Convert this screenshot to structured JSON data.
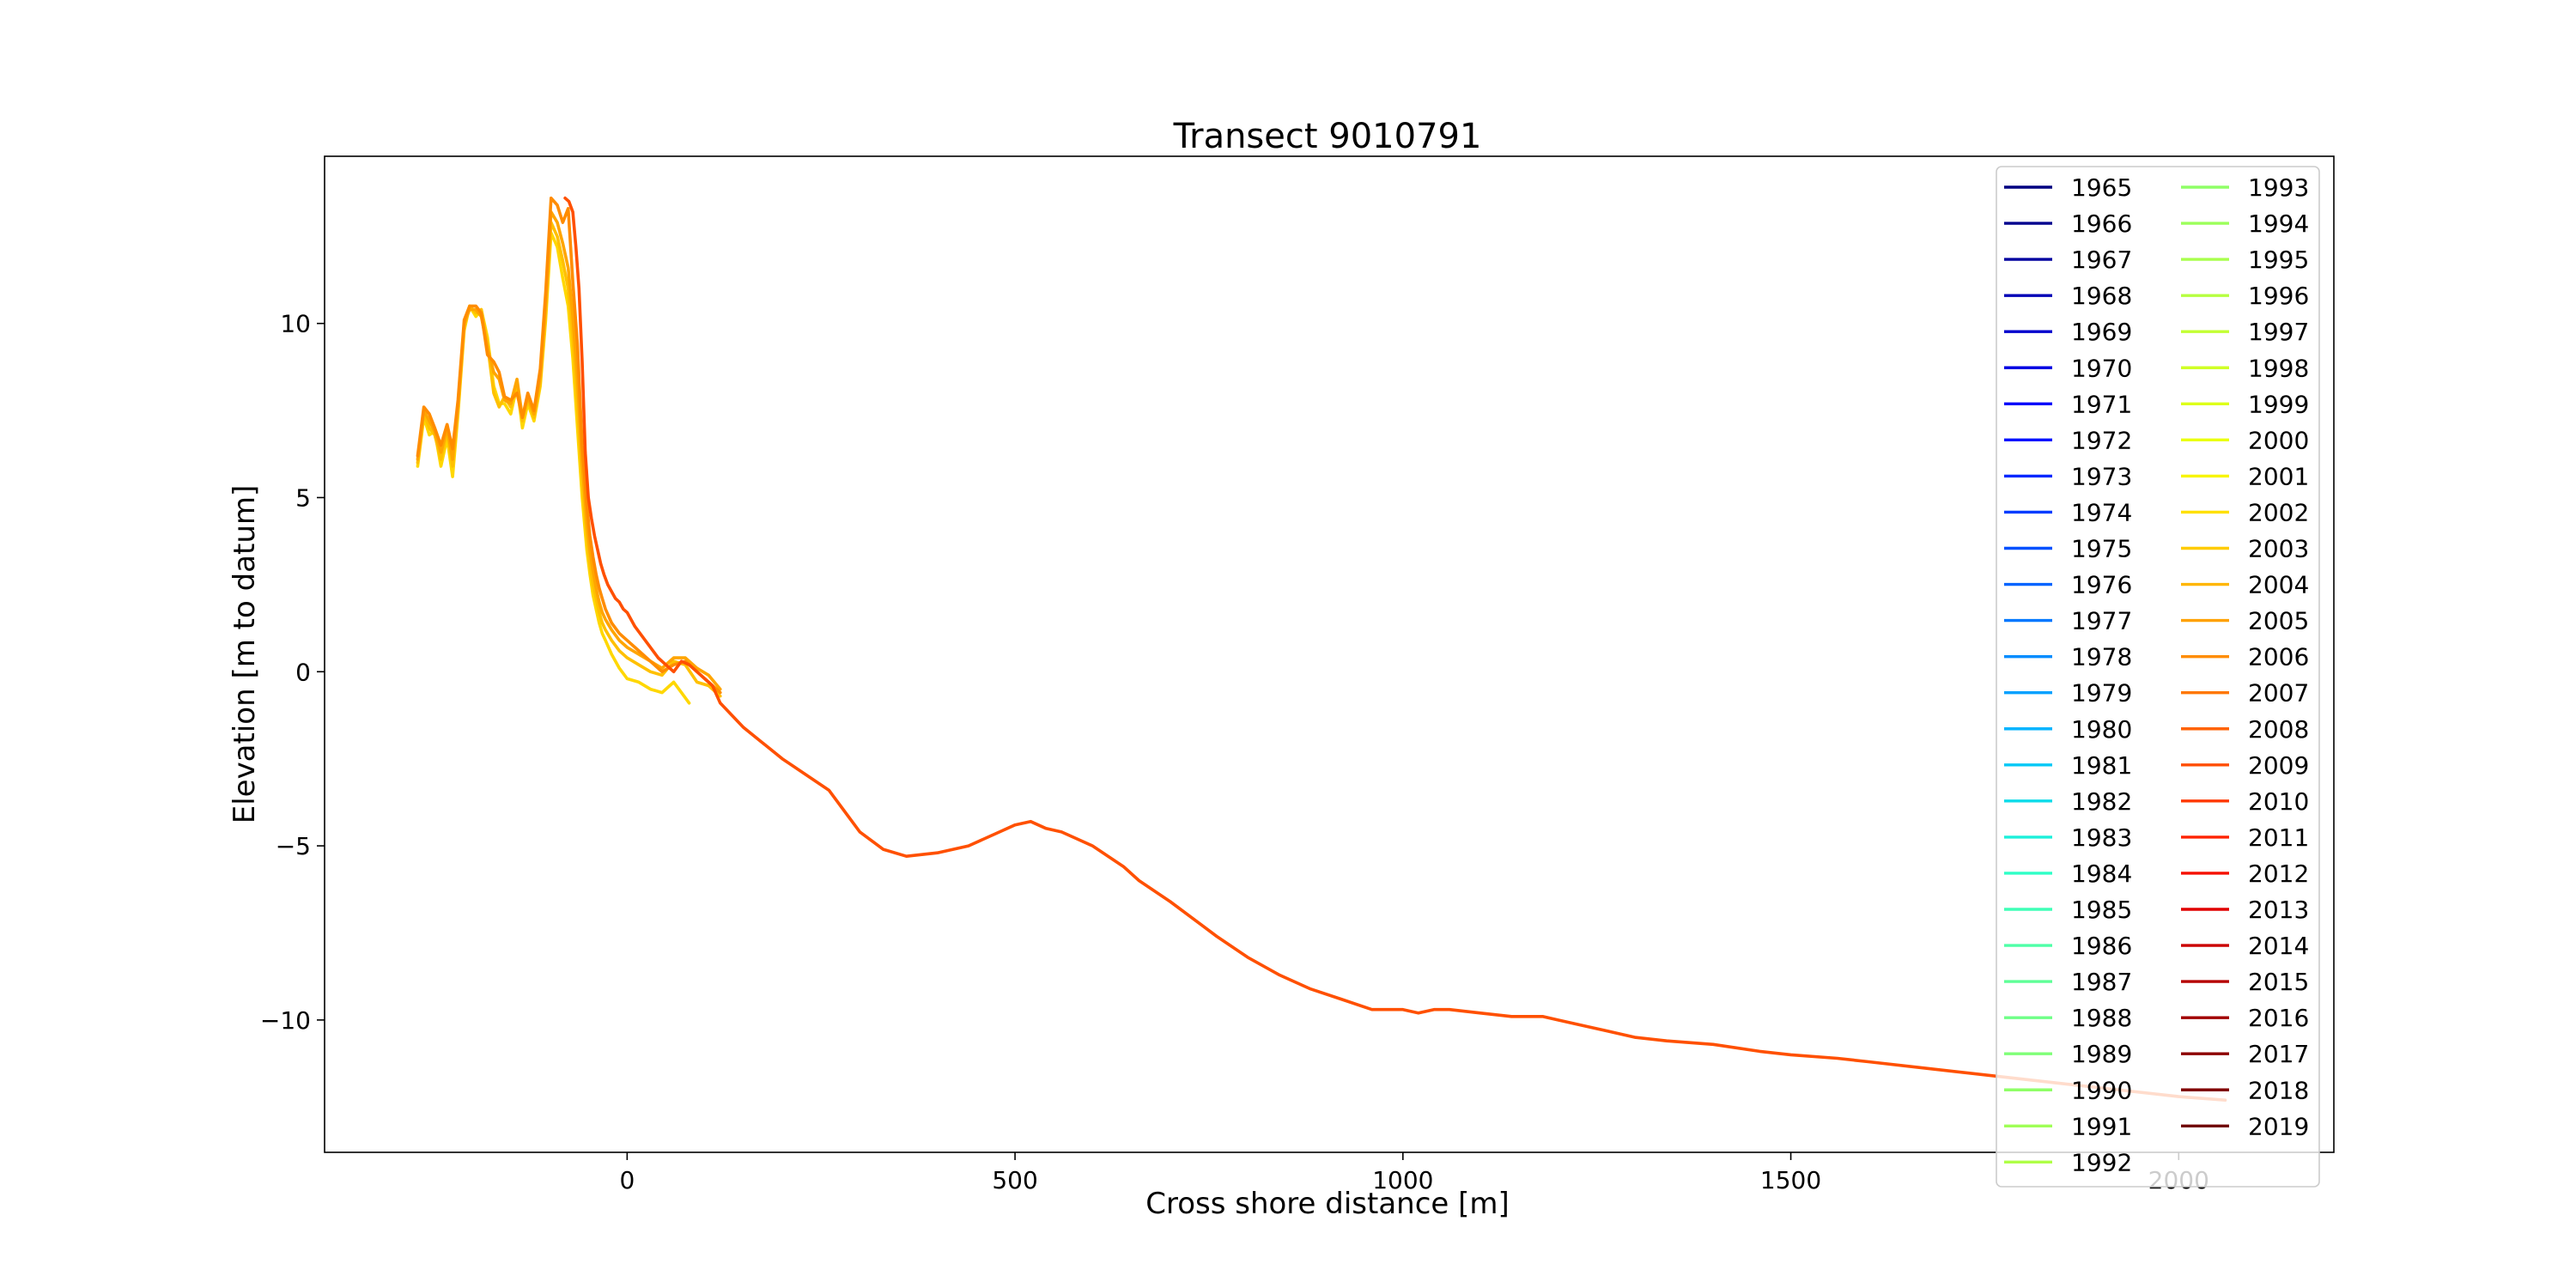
{
  "chart_data": {
    "type": "line",
    "title": "Transect 9010791",
    "xlabel": "Cross shore distance [m]",
    "ylabel": "Elevation [m to datum]",
    "xlim": [
      -390,
      2200
    ],
    "ylim": [
      -13.8,
      14.8
    ],
    "xticks": [
      0,
      500,
      1000,
      1500,
      2000
    ],
    "xtick_labels": [
      "0",
      "500",
      "1000",
      "1500",
      "2000"
    ],
    "yticks": [
      -10,
      -5,
      0,
      5,
      10
    ],
    "ytick_labels": [
      "−10",
      "−5",
      "0",
      "5",
      "10"
    ],
    "grid": false,
    "legend_position": "top-right",
    "legend_columns": 2,
    "legend_entries": [
      {
        "label": "1965",
        "color": "#000080"
      },
      {
        "label": "1966",
        "color": "#00008d"
      },
      {
        "label": "1967",
        "color": "#00009f"
      },
      {
        "label": "1968",
        "color": "#0000b6"
      },
      {
        "label": "1969",
        "color": "#0000cd"
      },
      {
        "label": "1970",
        "color": "#0000e3"
      },
      {
        "label": "1971",
        "color": "#0000fa"
      },
      {
        "label": "1972",
        "color": "#0010ff"
      },
      {
        "label": "1973",
        "color": "#0028ff"
      },
      {
        "label": "1974",
        "color": "#003cff"
      },
      {
        "label": "1975",
        "color": "#0050ff"
      },
      {
        "label": "1976",
        "color": "#0064ff"
      },
      {
        "label": "1977",
        "color": "#0078ff"
      },
      {
        "label": "1978",
        "color": "#008cff"
      },
      {
        "label": "1979",
        "color": "#00a0ff"
      },
      {
        "label": "1980",
        "color": "#00b4ff"
      },
      {
        "label": "1981",
        "color": "#00c8f6"
      },
      {
        "label": "1982",
        "color": "#0ddcea"
      },
      {
        "label": "1983",
        "color": "#1cf0db"
      },
      {
        "label": "1984",
        "color": "#2fffc7"
      },
      {
        "label": "1985",
        "color": "#3fffb7"
      },
      {
        "label": "1986",
        "color": "#4fffa7"
      },
      {
        "label": "1987",
        "color": "#5fff97"
      },
      {
        "label": "1988",
        "color": "#6fff87"
      },
      {
        "label": "1989",
        "color": "#7fff77"
      },
      {
        "label": "1990",
        "color": "#8fff67"
      },
      {
        "label": "1991",
        "color": "#9fff57"
      },
      {
        "label": "1992",
        "color": "#afff47"
      },
      {
        "label": "1993",
        "color": "#8fff67"
      },
      {
        "label": "1994",
        "color": "#9cff5a"
      },
      {
        "label": "1995",
        "color": "#a9ff4d"
      },
      {
        "label": "1996",
        "color": "#b6ff40"
      },
      {
        "label": "1997",
        "color": "#c3ff33"
      },
      {
        "label": "1998",
        "color": "#d0ff26"
      },
      {
        "label": "1999",
        "color": "#ddff19"
      },
      {
        "label": "2000",
        "color": "#eaff0c"
      },
      {
        "label": "2001",
        "color": "#f8f500"
      },
      {
        "label": "2002",
        "color": "#ffe000"
      },
      {
        "label": "2003",
        "color": "#ffcb00"
      },
      {
        "label": "2004",
        "color": "#ffb600"
      },
      {
        "label": "2005",
        "color": "#ffa100"
      },
      {
        "label": "2006",
        "color": "#ff8c00"
      },
      {
        "label": "2007",
        "color": "#ff7700"
      },
      {
        "label": "2008",
        "color": "#ff6200"
      },
      {
        "label": "2009",
        "color": "#ff4d00"
      },
      {
        "label": "2010",
        "color": "#ff3800"
      },
      {
        "label": "2011",
        "color": "#ff2300"
      },
      {
        "label": "2012",
        "color": "#f51000"
      },
      {
        "label": "2013",
        "color": "#e00000"
      },
      {
        "label": "2014",
        "color": "#cb0000"
      },
      {
        "label": "2015",
        "color": "#b60000"
      },
      {
        "label": "2016",
        "color": "#a10000"
      },
      {
        "label": "2017",
        "color": "#8c0000"
      },
      {
        "label": "2018",
        "color": "#800000"
      },
      {
        "label": "2019",
        "color": "#700000"
      }
    ],
    "series": [
      {
        "color": "#ffd700",
        "x": [
          -270,
          -262,
          -255,
          -248,
          -240,
          -232,
          -225,
          -218,
          -210,
          -203,
          -195,
          -188,
          -180,
          -172,
          -165,
          -158,
          -150,
          -142,
          -135,
          -128,
          -120,
          -112,
          -105,
          -98,
          -90,
          -83,
          -76,
          -70,
          -64,
          -58,
          -52,
          -48,
          -44,
          -40,
          -36,
          -32,
          -28,
          -20,
          -10,
          0,
          15,
          30,
          45,
          60,
          70,
          80
        ],
        "y": [
          5.9,
          7.3,
          6.8,
          6.9,
          5.9,
          6.7,
          5.6,
          7.4,
          9.8,
          10.5,
          10.2,
          10.4,
          9.6,
          8.2,
          7.7,
          7.7,
          7.4,
          8.2,
          7.0,
          7.7,
          7.2,
          8.2,
          10.1,
          12.6,
          12.2,
          11.3,
          10.5,
          9.0,
          7.0,
          5.0,
          3.5,
          2.8,
          2.2,
          1.8,
          1.4,
          1.1,
          0.9,
          0.5,
          0.1,
          -0.2,
          -0.3,
          -0.5,
          -0.6,
          -0.3,
          -0.6,
          -0.9
        ]
      },
      {
        "color": "#ffc000",
        "x": [
          -270,
          -262,
          -255,
          -248,
          -240,
          -232,
          -225,
          -218,
          -210,
          -203,
          -195,
          -188,
          -180,
          -172,
          -165,
          -158,
          -150,
          -142,
          -135,
          -128,
          -120,
          -112,
          -105,
          -98,
          -90,
          -83,
          -76,
          -70,
          -64,
          -58,
          -52,
          -48,
          -44,
          -40,
          -36,
          -32,
          -28,
          -20,
          -10,
          0,
          15,
          30,
          45,
          60,
          75,
          90,
          105,
          120
        ],
        "y": [
          6.0,
          7.4,
          7.0,
          6.8,
          6.1,
          6.9,
          5.9,
          7.5,
          9.9,
          10.5,
          10.3,
          10.4,
          9.4,
          8.0,
          7.6,
          7.9,
          7.6,
          8.3,
          7.2,
          7.8,
          7.3,
          8.3,
          10.3,
          12.9,
          12.5,
          11.8,
          11.0,
          9.6,
          7.6,
          5.5,
          3.9,
          3.1,
          2.5,
          2.1,
          1.7,
          1.4,
          1.2,
          0.9,
          0.6,
          0.4,
          0.2,
          0.0,
          -0.1,
          0.3,
          0.2,
          -0.3,
          -0.4,
          -0.7
        ]
      },
      {
        "color": "#ffa500",
        "x": [
          -270,
          -262,
          -255,
          -248,
          -240,
          -232,
          -225,
          -218,
          -210,
          -203,
          -195,
          -188,
          -180,
          -172,
          -165,
          -158,
          -150,
          -142,
          -135,
          -128,
          -120,
          -112,
          -105,
          -98,
          -90,
          -83,
          -76,
          -70,
          -64,
          -58,
          -52,
          -48,
          -44,
          -40,
          -36,
          -32,
          -28,
          -20,
          -10,
          0,
          15,
          30,
          45,
          60,
          75,
          90,
          105,
          120
        ],
        "y": [
          6.1,
          7.5,
          7.2,
          6.9,
          6.3,
          7.0,
          6.1,
          7.7,
          10.0,
          10.4,
          10.4,
          10.2,
          9.3,
          8.6,
          8.4,
          7.8,
          7.7,
          8.4,
          7.3,
          7.9,
          7.4,
          8.5,
          10.6,
          13.2,
          12.9,
          12.3,
          11.6,
          10.2,
          8.4,
          6.0,
          4.3,
          3.5,
          2.9,
          2.4,
          2.0,
          1.7,
          1.5,
          1.2,
          0.9,
          0.7,
          0.5,
          0.3,
          0.1,
          0.4,
          0.4,
          0.1,
          -0.1,
          -0.5
        ]
      },
      {
        "color": "#ff8c00",
        "x": [
          -270,
          -262,
          -255,
          -248,
          -240,
          -232,
          -225,
          -218,
          -210,
          -203,
          -195,
          -188,
          -180,
          -172,
          -165,
          -158,
          -150,
          -142,
          -135,
          -128,
          -120,
          -112,
          -105,
          -98,
          -90,
          -83,
          -76,
          -70,
          -64,
          -58,
          -52,
          -48,
          -44,
          -40,
          -36,
          -32,
          -28,
          -20,
          -10,
          0,
          15,
          30,
          45,
          60,
          75,
          90,
          105,
          120
        ],
        "y": [
          6.2,
          7.6,
          7.4,
          7.0,
          6.5,
          7.1,
          6.4,
          7.8,
          10.1,
          10.5,
          10.5,
          10.3,
          9.1,
          8.9,
          8.6,
          7.9,
          7.8,
          8.0,
          7.3,
          8.0,
          7.5,
          8.7,
          10.9,
          13.6,
          13.4,
          12.9,
          13.3,
          11.2,
          9.4,
          6.5,
          4.8,
          3.9,
          3.3,
          2.8,
          2.4,
          2.1,
          1.8,
          1.4,
          1.1,
          0.9,
          0.6,
          0.3,
          0.0,
          0.2,
          0.3,
          0.0,
          -0.3,
          -0.6
        ]
      },
      {
        "color": "#ff5000",
        "x": [
          -80,
          -75,
          -70,
          -66,
          -62,
          -58,
          -54,
          -50,
          -46,
          -42,
          -38,
          -34,
          -30,
          -25,
          -20,
          -15,
          -10,
          -5,
          0,
          10,
          20,
          30,
          40,
          50,
          60,
          70,
          80,
          90,
          100,
          110,
          120,
          150,
          200,
          260,
          280,
          300,
          330,
          360,
          400,
          440,
          480,
          500,
          520,
          540,
          560,
          580,
          600,
          620,
          640,
          660,
          700,
          760,
          800,
          840,
          880,
          920,
          960,
          1000,
          1020,
          1040,
          1060,
          1100,
          1140,
          1160,
          1180,
          1200,
          1240,
          1260,
          1300,
          1340,
          1400,
          1460,
          1500,
          1560,
          1600,
          1680,
          1760,
          1840,
          1920,
          2000,
          2060
        ],
        "y": [
          13.6,
          13.5,
          13.2,
          12.2,
          11.0,
          8.9,
          6.3,
          5.0,
          4.4,
          3.9,
          3.5,
          3.1,
          2.8,
          2.5,
          2.3,
          2.1,
          2.0,
          1.8,
          1.7,
          1.3,
          1.0,
          0.7,
          0.4,
          0.2,
          0.0,
          0.3,
          0.2,
          0.0,
          -0.2,
          -0.4,
          -0.9,
          -1.6,
          -2.5,
          -3.4,
          -4.0,
          -4.6,
          -5.1,
          -5.3,
          -5.2,
          -5.0,
          -4.6,
          -4.4,
          -4.3,
          -4.5,
          -4.6,
          -4.8,
          -5.0,
          -5.3,
          -5.6,
          -6.0,
          -6.6,
          -7.6,
          -8.2,
          -8.7,
          -9.1,
          -9.4,
          -9.7,
          -9.7,
          -9.8,
          -9.7,
          -9.7,
          -9.8,
          -9.9,
          -9.9,
          -9.9,
          -10.0,
          -10.2,
          -10.3,
          -10.5,
          -10.6,
          -10.7,
          -10.9,
          -11.0,
          -11.1,
          -11.2,
          -11.4,
          -11.6,
          -11.8,
          -12.0,
          -12.2,
          -12.3
        ]
      }
    ]
  }
}
